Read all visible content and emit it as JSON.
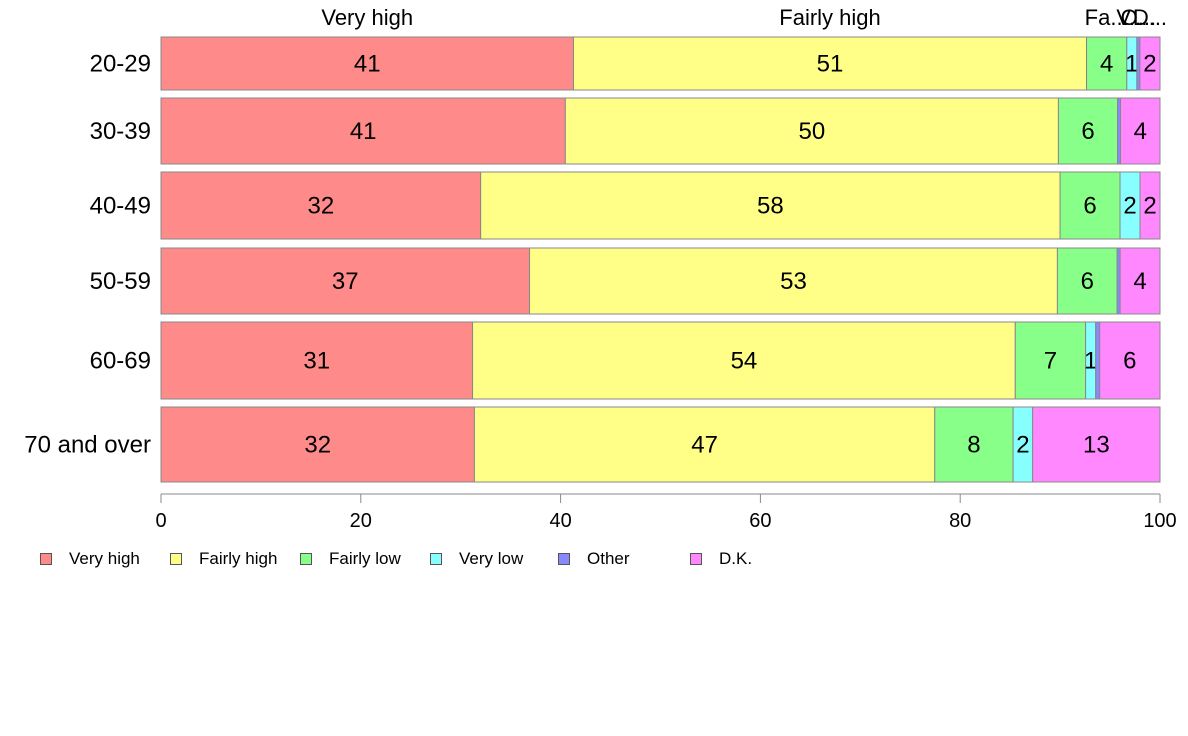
{
  "chart_data": {
    "type": "bar",
    "orientation": "horizontal",
    "stacked": true,
    "categories": [
      "20-29",
      "30-39",
      "40-49",
      "50-59",
      "60-69",
      "70 and over"
    ],
    "series": [
      {
        "name": "Very high",
        "color": "#ff8a8a",
        "values": [
          41,
          41,
          32,
          37,
          31,
          32
        ],
        "labels": [
          "41",
          "41",
          "32",
          "37",
          "31",
          "32"
        ]
      },
      {
        "name": "Fairly high",
        "color": "#ffff88",
        "values": [
          51,
          50,
          58,
          53,
          54,
          47
        ],
        "labels": [
          "51",
          "50",
          "58",
          "53",
          "54",
          "47"
        ]
      },
      {
        "name": "Fairly low",
        "color": "#88ff88",
        "values": [
          4,
          6,
          6,
          6,
          7,
          8
        ],
        "labels": [
          "4",
          "6",
          "6",
          "6",
          "7",
          "8"
        ]
      },
      {
        "name": "Very low",
        "color": "#88ffff",
        "values": [
          1,
          0,
          2,
          0,
          1,
          2
        ],
        "labels": [
          "1",
          "",
          "2",
          "",
          "1",
          "2"
        ]
      },
      {
        "name": "Other",
        "color": "#8888ff",
        "values": [
          0.3,
          0.3,
          0,
          0.3,
          0.4,
          0
        ],
        "labels": [
          "",
          "",
          "",
          "",
          "",
          ""
        ]
      },
      {
        "name": "D.K.",
        "color": "#ff88ff",
        "values": [
          2,
          4,
          2,
          4,
          6,
          13
        ],
        "labels": [
          "2",
          "4",
          "2",
          "4",
          "6",
          "13"
        ]
      }
    ],
    "top_labels": [
      "Very high",
      "Fairly high",
      "Fa...",
      "V...",
      "O...",
      "D..."
    ],
    "xlim": [
      0,
      100
    ],
    "xticks": [
      0,
      20,
      40,
      60,
      80,
      100
    ],
    "legend_position": "bottom-left",
    "grid": false
  }
}
